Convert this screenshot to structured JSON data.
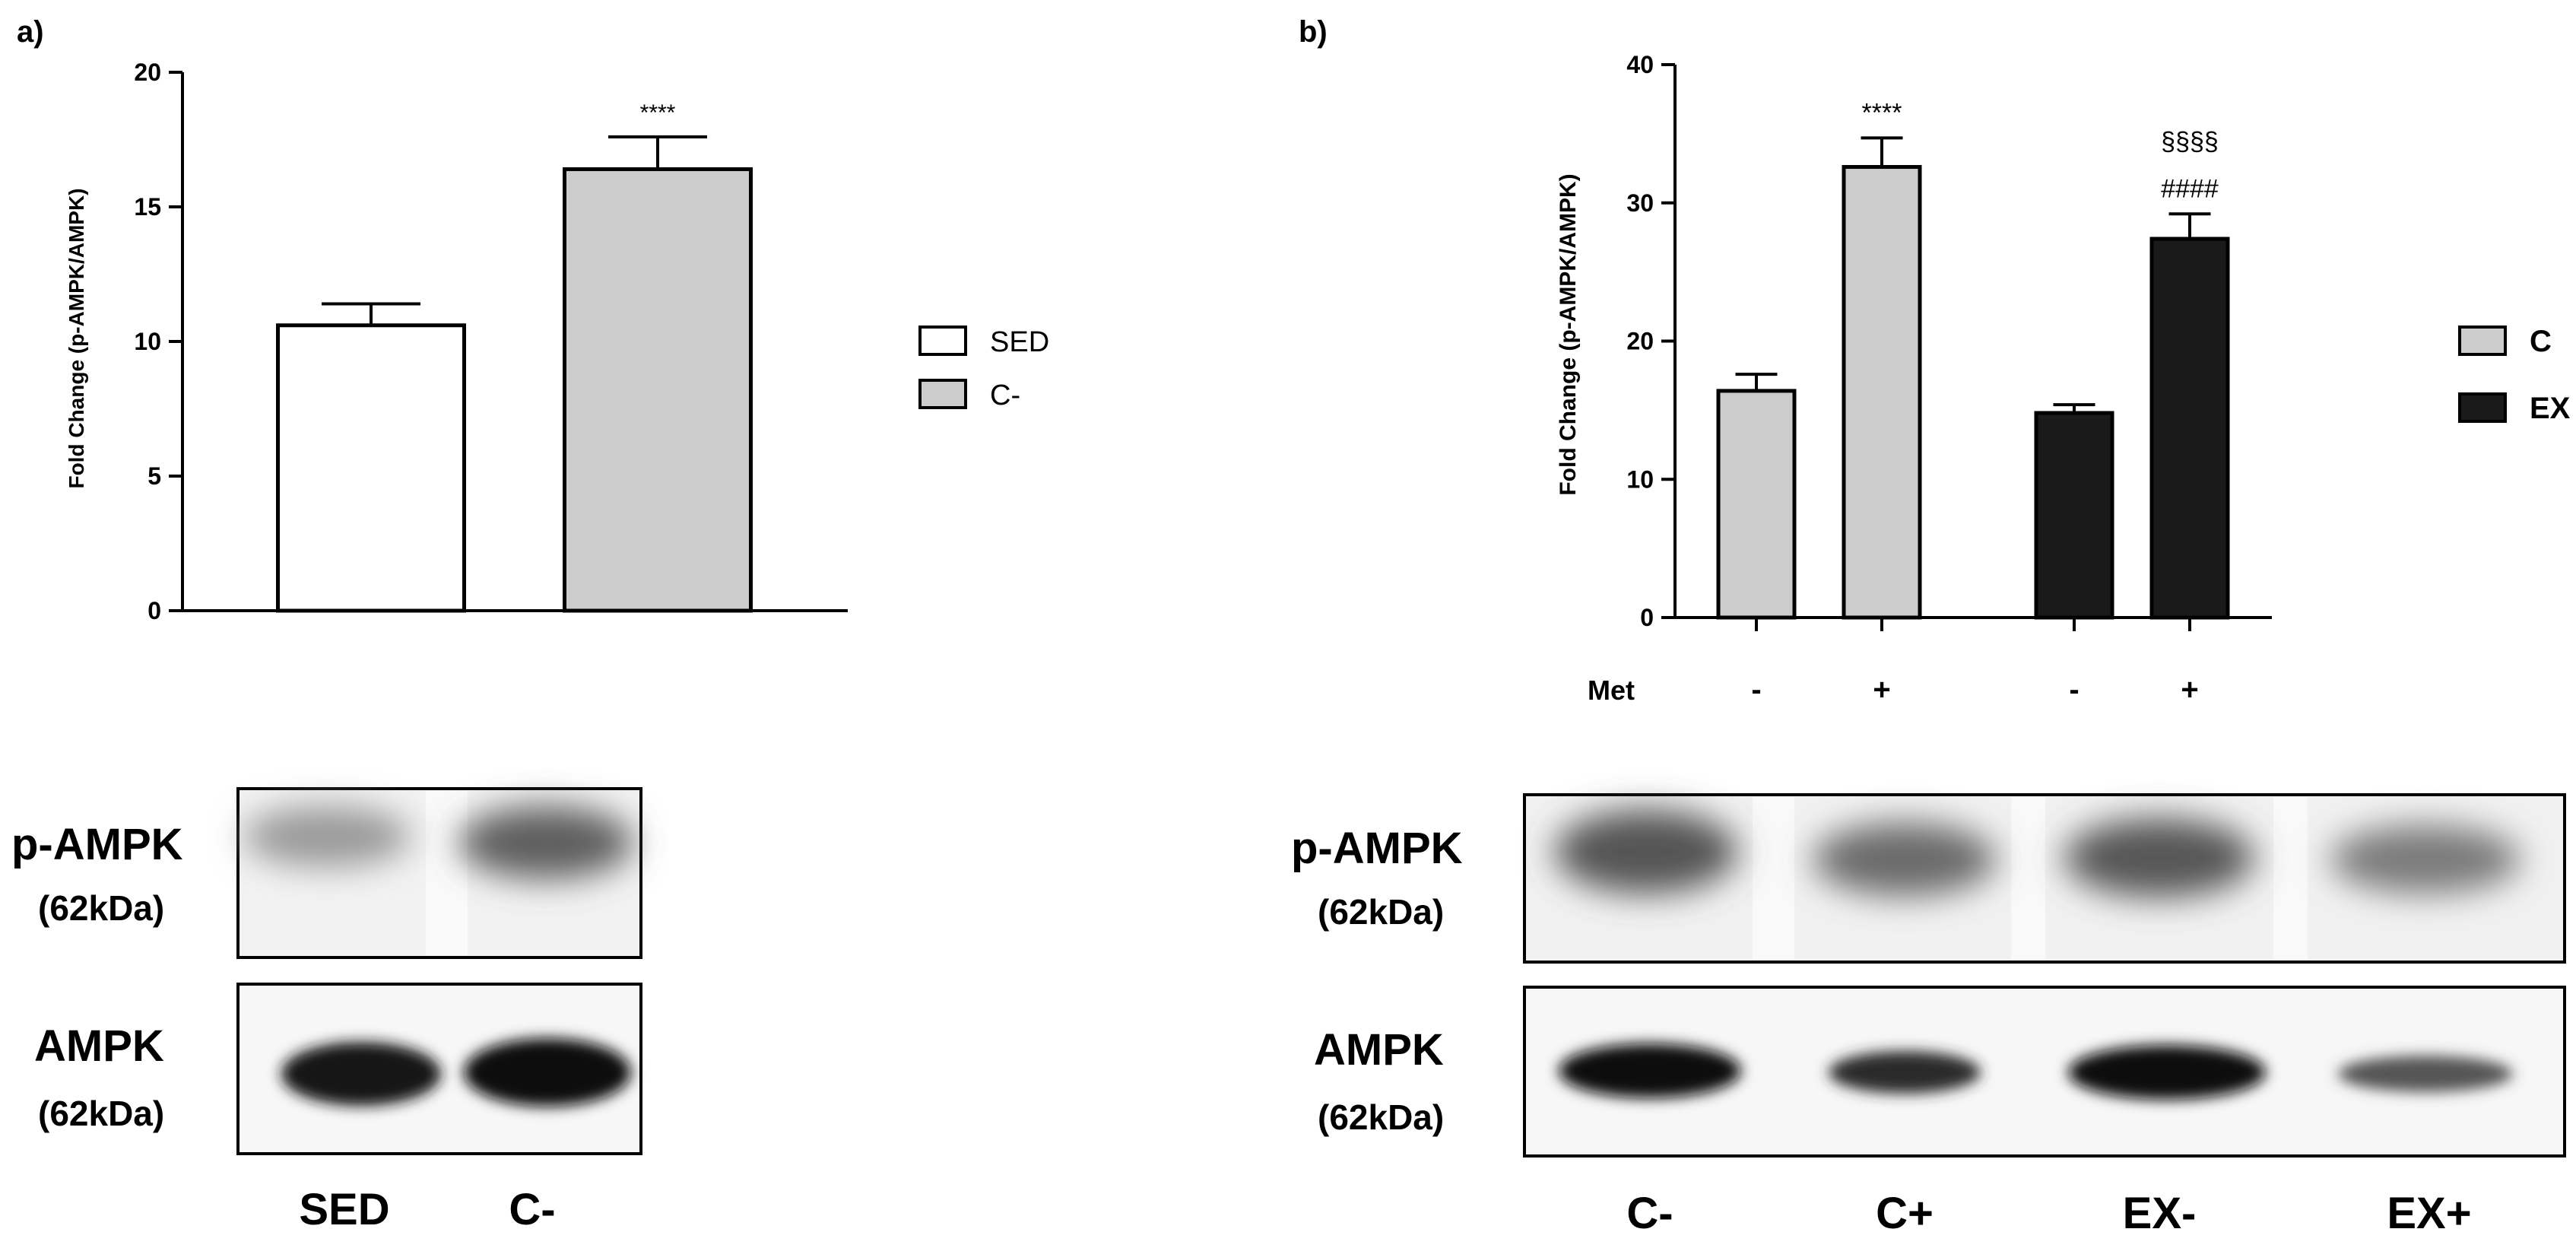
{
  "panel_a": {
    "label": "a)",
    "blot_rows": [
      {
        "name": "p-AMPK",
        "size": "(62kDa)"
      },
      {
        "name": "AMPK",
        "size": "(62kDa)"
      }
    ],
    "lane_labels": [
      "SED",
      "C-"
    ]
  },
  "panel_b": {
    "label": "b)",
    "blot_rows": [
      {
        "name": "p-AMPK",
        "size": "(62kDa)"
      },
      {
        "name": "AMPK",
        "size": "(62kDa)"
      }
    ],
    "lane_labels": [
      "C-",
      "C+",
      "EX-",
      "EX+"
    ],
    "met_label": "Met"
  },
  "chart_data": [
    {
      "type": "bar",
      "categories": [
        "SED",
        "C-"
      ],
      "values": [
        10.6,
        16.4
      ],
      "errors": [
        0.8,
        1.2
      ],
      "annotations": [
        "",
        "****"
      ],
      "ylabel": "Fold Change (p-AMPK/AMPK)",
      "ylim": [
        0,
        20
      ],
      "yticks": [
        0,
        5,
        10,
        15,
        20
      ],
      "legend": [
        {
          "name": "SED",
          "color": "#ffffff"
        },
        {
          "name": "C-",
          "color": "#cccccc"
        }
      ],
      "legend_position": "right",
      "grid": false
    },
    {
      "type": "bar",
      "categories": [
        "-",
        "+",
        "-",
        "+"
      ],
      "met_row": [
        "-",
        "+",
        "-",
        "+"
      ],
      "values": [
        16.4,
        32.6,
        14.8,
        27.4
      ],
      "errors": [
        1.2,
        2.1,
        0.6,
        1.8
      ],
      "groups": [
        "C",
        "C",
        "EX",
        "EX"
      ],
      "annotations": [
        [],
        [
          "****"
        ],
        [],
        [
          "§§§§",
          "####"
        ]
      ],
      "ylabel": "Fold Change (p-AMPK/AMPK)",
      "ylim": [
        0,
        40
      ],
      "yticks": [
        0,
        10,
        20,
        30,
        40
      ],
      "legend": [
        {
          "name": "C",
          "color": "#cccccc"
        },
        {
          "name": "EX",
          "color": "#1a1a1a"
        }
      ],
      "legend_position": "right",
      "grid": false
    }
  ]
}
